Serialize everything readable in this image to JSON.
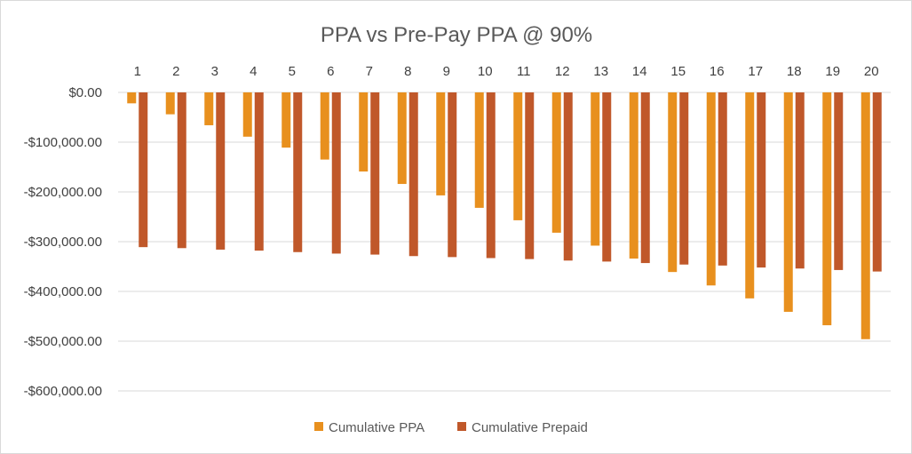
{
  "chart_data": {
    "type": "bar",
    "title": "PPA vs Pre-Pay PPA @ 90%",
    "xlabel": "",
    "ylabel": "",
    "categories": [
      "1",
      "2",
      "3",
      "4",
      "5",
      "6",
      "7",
      "8",
      "9",
      "10",
      "11",
      "12",
      "13",
      "14",
      "15",
      "16",
      "17",
      "18",
      "19",
      "20"
    ],
    "x_axis_position": "top",
    "ylim": [
      -600000,
      0
    ],
    "y_ticks": [
      0,
      -100000,
      -200000,
      -300000,
      -400000,
      -500000,
      -600000
    ],
    "y_tick_labels": [
      "$0.00",
      "-$100,000.00",
      "-$200,000.00",
      "-$300,000.00",
      "-$400,000.00",
      "-$500,000.00",
      "-$600,000.00"
    ],
    "grid": true,
    "legend_position": "bottom",
    "series": [
      {
        "name": "Cumulative PPA",
        "color": "#e8901e",
        "values": [
          -22000,
          -44000,
          -66000,
          -89000,
          -111000,
          -135000,
          -159000,
          -184000,
          -207000,
          -232000,
          -257000,
          -282000,
          -308000,
          -334000,
          -361000,
          -388000,
          -414000,
          -441000,
          -468000,
          -496000
        ]
      },
      {
        "name": "Cumulative Prepaid",
        "color": "#c0582a",
        "values": [
          -311000,
          -313000,
          -316000,
          -318000,
          -321000,
          -324000,
          -326000,
          -329000,
          -331000,
          -333000,
          -335000,
          -338000,
          -340000,
          -343000,
          -346000,
          -348000,
          -352000,
          -354000,
          -357000,
          -360000
        ]
      }
    ]
  }
}
